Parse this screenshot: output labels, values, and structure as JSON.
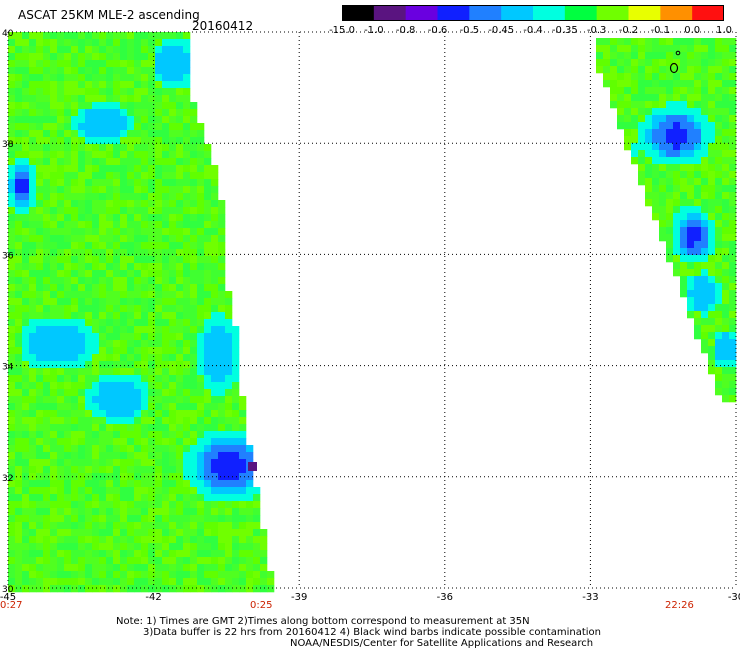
{
  "header": {
    "title": "ASCAT 25KM MLE-2 ascending",
    "date": "20160412"
  },
  "colorbar": {
    "labels": [
      "-15.0",
      "-1.0",
      "-0.8",
      "-0.6",
      "-0.5",
      "-0.45",
      "-0.4",
      "-0.35",
      "-0.3",
      "-0.2",
      "-0.1",
      "0.0",
      "1.0"
    ],
    "colors": [
      "#000000",
      "#5a1480",
      "#6a00e0",
      "#1020ff",
      "#2080ff",
      "#00c8ff",
      "#00ffe0",
      "#00ff40",
      "#70ff00",
      "#e8ff00",
      "#ff9000",
      "#ff1010"
    ]
  },
  "map": {
    "lon_range": [
      -45,
      -30
    ],
    "lat_range": [
      30,
      40
    ],
    "lon_ticks": [
      "-45",
      "-42",
      "-39",
      "-36",
      "-33",
      "-30"
    ],
    "lat_ticks": [
      "40",
      "38",
      "36",
      "34",
      "32",
      "30"
    ],
    "contamination_markers": 2
  },
  "times": {
    "t1": "0:27",
    "t2": "0:25",
    "t3": "22:26"
  },
  "notes": {
    "line1": "Note: 1) Times are GMT 2)Times along bottom correspond to measurement at 35N",
    "line2": "3)Data buffer is 22 hrs from 20160412 4) Black wind barbs indicate possible contamination",
    "line3": "NOAA/NESDIS/Center for Satellite Applications and Research"
  }
}
